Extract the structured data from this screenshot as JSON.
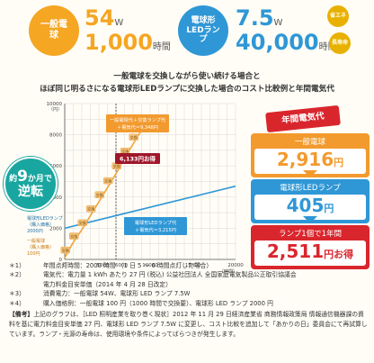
{
  "top": {
    "incandescent": {
      "label": "一般電球",
      "watts": "54",
      "w_unit": "W",
      "hours": "1,000",
      "hours_unit": "時間"
    },
    "led": {
      "label": "電球形LEDランプ",
      "watts": "7.5",
      "w_unit": "W",
      "hours": "40,000",
      "hours_unit": "時間",
      "badge_energy": "省エネ",
      "badge_life": "長寿命"
    }
  },
  "heading": {
    "line1": "一般電球を交換しながら使い続ける場合と",
    "line2": "ほぼ同じ明るさになる電球形LEDランプに交換した場合のコスト比較例と年間電気代"
  },
  "chart_data": {
    "type": "line",
    "x_ticks": [
      "0",
      "5000",
      "6000",
      "10000",
      "15000",
      "20000"
    ],
    "x_unit": "（時間）",
    "y_ticks": [
      "0",
      "2000",
      "4000",
      "6000",
      "8000",
      "10000"
    ],
    "y_unit": "（円）",
    "xlim": [
      0,
      20000
    ],
    "ylim": [
      0,
      10000
    ],
    "grid": true,
    "series": [
      {
        "name": "一般電球",
        "color": "#f2a33a",
        "x": [
          0,
          1000,
          2000,
          3000,
          4000,
          5000,
          6000,
          7000,
          8000,
          9000,
          10000
        ],
        "y": [
          100,
          1100,
          1900,
          2800,
          3700,
          4600,
          5500,
          6500,
          7400,
          8300,
          9300
        ]
      },
      {
        "name": "電球形LEDランプ",
        "color": "#2f97d6",
        "x": [
          0,
          20000
        ],
        "y": [
          2000,
          4700
        ]
      }
    ],
    "bulb_marks": [
      "交換",
      "交換",
      "交換",
      "交換",
      "交換",
      "交換",
      "交換",
      "交換",
      "交換"
    ],
    "vertical_marker_x": 6000,
    "callout_incandescent": {
      "line1": "一般電球代＋交換ランプ代",
      "line2": "＋電気代＝9,348円"
    },
    "callout_led": {
      "line1": "電球形LEDランプ代",
      "line2": "＋電気代＝3,215円"
    },
    "savings_label": "6,133円お得",
    "led_purchase_label": {
      "line1": "電球形LEDランプ",
      "line2": "（購入価格）",
      "line3": "2000円"
    },
    "bulb_purchase_label": {
      "line1": "一般電球",
      "line2": "（購入価格）",
      "line3": "100円"
    }
  },
  "nine_months": {
    "line1": "約",
    "number": "9",
    "line1b": "か月で",
    "line2": "逆転"
  },
  "annual": {
    "tag": "年間電気代",
    "bulb_label": "一般電球",
    "bulb_value": "2,916",
    "bulb_yen": "円",
    "led_label": "電球形LEDランプ",
    "led_value": "405",
    "led_yen": "円",
    "save_label": "ランプ1個で1年間",
    "save_value": "2,511",
    "save_yen": "円お得"
  },
  "notes": [
    {
      "mark": "＊1）",
      "text": "年間点灯時間：2000 時間 （1 日 5 〜 6 時間点灯した場合）"
    },
    {
      "mark": "＊2）",
      "text": "電気代：電力量 1 kWh あたり 27 円 (税込) 公益社団法人 全国家庭電気製品公正取引協議会"
    },
    {
      "mark": "",
      "text": "電力料金目安単価（2014 年 4 月 28 日改定）"
    },
    {
      "mark": "＊3）",
      "text": "消費電力：一般電球 54W、電球形 LED ランプ 7.5W"
    },
    {
      "mark": "＊4）",
      "text": "購入価格例：一般電球 100 円（1000 時間で交換要）、電球形 LED ランプ 2000 円"
    }
  ],
  "remark": {
    "tag": "【備考】",
    "text": "上記のグラフは、［LED 照明産業を取り巻く現状］2012 年 11 月 29 日経済産業省 商務情報政策局 情報通信機器課の資料を基に電力料金目安単価 27 円、電球形 LED ランプ 7.5W に変更し、コスト比較を追加して「あかりの日」委員会にて再試算しています。ランプ・光源の寿命は、使用環境や条件によってばらつきが発生します。"
  }
}
